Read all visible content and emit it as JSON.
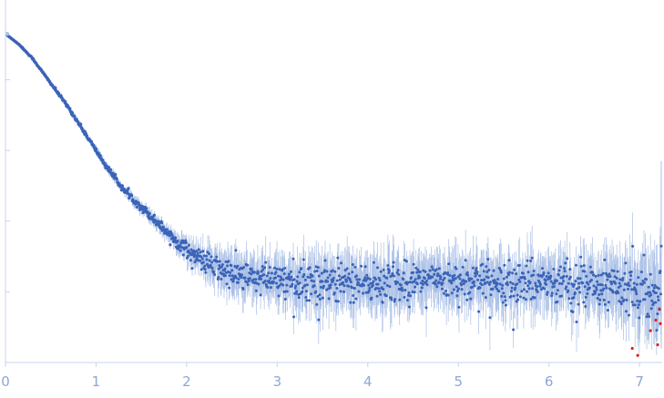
{
  "chart_data": {
    "type": "scatter",
    "title": "",
    "xlabel": "",
    "ylabel": "",
    "xlim": [
      0,
      7.25
    ],
    "ylim": [
      0,
      1.0
    ],
    "x_ticks": [
      "0",
      "1",
      "2",
      "3",
      "4",
      "5",
      "6",
      "7"
    ],
    "y_ticks": [
      0.2,
      0.4,
      0.6,
      0.8
    ],
    "show_y_tick_labels": false,
    "grid": false,
    "legend": "none",
    "colors": {
      "points": "#3a63b8",
      "error_bars": "#a9bfe6",
      "outliers": "#e02020",
      "axis": "#c7d3ee",
      "tick_label": "#8fa6d6",
      "first_point": "#aac0ea"
    },
    "series": [
      {
        "profile": {
          "x": [
            0.0,
            0.05,
            0.15,
            0.3,
            0.5,
            0.7,
            0.9,
            1.1,
            1.3,
            1.5,
            1.7,
            1.9,
            2.1,
            2.3,
            2.5,
            2.8,
            3.0,
            3.5,
            4.0,
            4.5,
            5.0,
            5.5,
            6.0,
            6.5,
            7.0,
            7.25
          ],
          "y": [
            0.93,
            0.92,
            0.9,
            0.86,
            0.79,
            0.72,
            0.64,
            0.56,
            0.49,
            0.44,
            0.39,
            0.34,
            0.3,
            0.27,
            0.25,
            0.235,
            0.232,
            0.228,
            0.225,
            0.228,
            0.232,
            0.23,
            0.228,
            0.22,
            0.21,
            0.2
          ],
          "noise_sd": [
            0.0,
            0.0,
            0.001,
            0.002,
            0.003,
            0.004,
            0.005,
            0.006,
            0.007,
            0.009,
            0.011,
            0.015,
            0.022,
            0.03,
            0.035,
            0.038,
            0.04,
            0.045,
            0.045,
            0.045,
            0.045,
            0.045,
            0.045,
            0.05,
            0.06,
            0.08
          ]
        },
        "n_points": 1400
      }
    ],
    "outliers": [
      {
        "x": 6.92,
        "y": 0.04
      },
      {
        "x": 6.98,
        "y": 0.02
      },
      {
        "x": 7.12,
        "y": 0.09
      },
      {
        "x": 7.18,
        "y": 0.12
      },
      {
        "x": 7.2,
        "y": 0.05
      },
      {
        "x": 7.22,
        "y": 0.15
      },
      {
        "x": 7.23,
        "y": 0.11
      }
    ]
  }
}
